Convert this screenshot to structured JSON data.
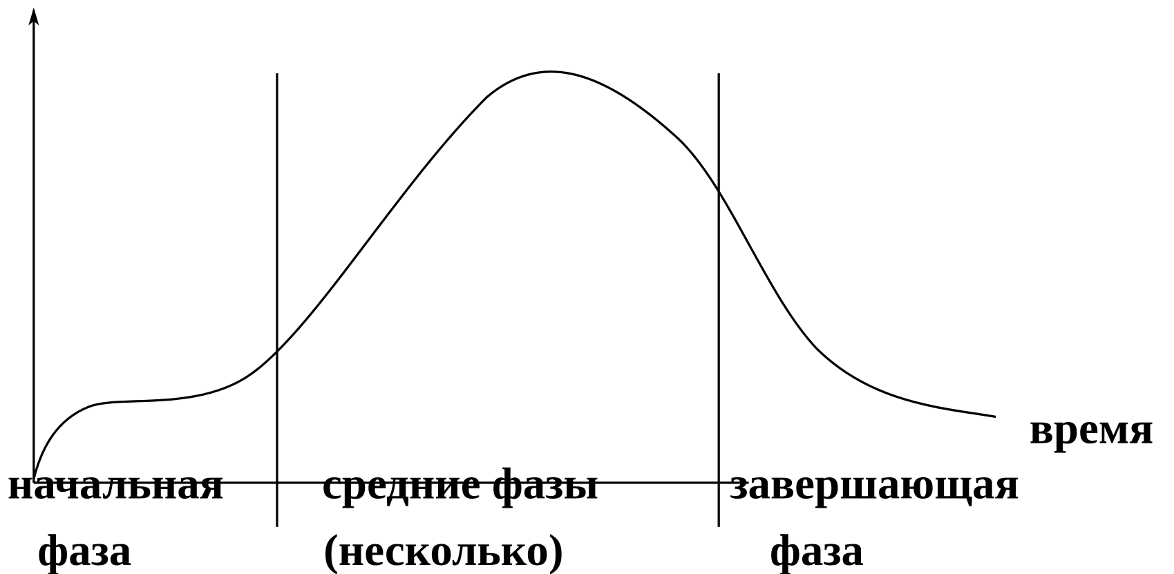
{
  "axis_label": "время",
  "phases": [
    {
      "lines": [
        "начальная",
        "фаза"
      ]
    },
    {
      "lines": [
        "средние фазы",
        "(несколько)"
      ]
    },
    {
      "lines": [
        "завершающая",
        "фаза"
      ]
    }
  ]
}
